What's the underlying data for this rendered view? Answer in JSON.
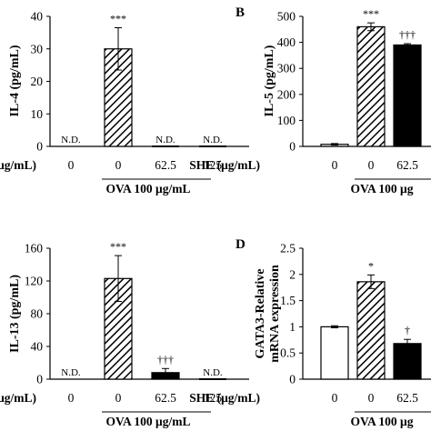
{
  "chart_data": [
    {
      "panel": "",
      "type": "bar",
      "ylabel": "IL-4 (pg/mL)",
      "ylim": [
        0,
        40
      ],
      "yticks": [
        0,
        10,
        20,
        30,
        40
      ],
      "xlabel": "(μg/mL)",
      "categories": [
        "0",
        "0",
        "62.5",
        "125"
      ],
      "group_label": "OVA 100 μg/mL",
      "group_start": 1,
      "values": [
        0,
        30,
        0,
        0
      ],
      "errors": [
        0,
        6.5,
        0,
        0
      ],
      "fills": [
        "none",
        "hatch",
        "none",
        "none"
      ],
      "bar_labels": [
        "N.D.",
        "",
        "N.D.",
        "N.D."
      ],
      "significance": [
        "",
        "***",
        "",
        ""
      ]
    },
    {
      "panel": "B",
      "type": "bar",
      "ylabel": "IL-5 (pg/mL)",
      "ylim": [
        0,
        500
      ],
      "yticks": [
        0,
        100,
        200,
        300,
        400,
        500
      ],
      "xlabel": "SHE (μg/mL)",
      "categories": [
        "0",
        "0",
        "62.5"
      ],
      "group_label": "OVA 100 μg",
      "group_start": 1,
      "values": [
        8,
        460,
        390
      ],
      "errors": [
        3,
        15,
        5
      ],
      "fills": [
        "white",
        "hatch",
        "black"
      ],
      "bar_labels": [
        "",
        "",
        ""
      ],
      "significance": [
        "",
        "***",
        "†††"
      ]
    },
    {
      "panel": "",
      "type": "bar",
      "ylabel": "IL-13 (pg/mL)",
      "ylim": [
        0,
        160
      ],
      "yticks": [
        0,
        40,
        80,
        120,
        160
      ],
      "xlabel": "(μg/mL)",
      "categories": [
        "0",
        "0",
        "62.5",
        "125"
      ],
      "group_label": "OVA 100 μg/mL",
      "group_start": 1,
      "values": [
        0,
        123,
        8,
        0
      ],
      "errors": [
        0,
        28,
        5,
        0
      ],
      "fills": [
        "none",
        "hatch",
        "black",
        "none"
      ],
      "bar_labels": [
        "N.D.",
        "",
        "",
        "N.D."
      ],
      "significance": [
        "",
        "***",
        "†††",
        ""
      ]
    },
    {
      "panel": "D",
      "type": "bar",
      "ylabel": [
        "GATA3-Relative",
        "mRNA expression"
      ],
      "ylim": [
        0,
        2.5
      ],
      "yticks": [
        0,
        0.5,
        1,
        1.5,
        2,
        2.5
      ],
      "xlabel": "SHE (μg/mL)",
      "categories": [
        "0",
        "0",
        "62.5"
      ],
      "group_label": "OVA 100 μg",
      "group_start": 1,
      "values": [
        1.0,
        1.86,
        0.68
      ],
      "errors": [
        0.02,
        0.13,
        0.08
      ],
      "fills": [
        "white",
        "hatch",
        "black"
      ],
      "bar_labels": [
        "",
        "",
        ""
      ],
      "significance": [
        "",
        "*",
        "†"
      ]
    }
  ]
}
